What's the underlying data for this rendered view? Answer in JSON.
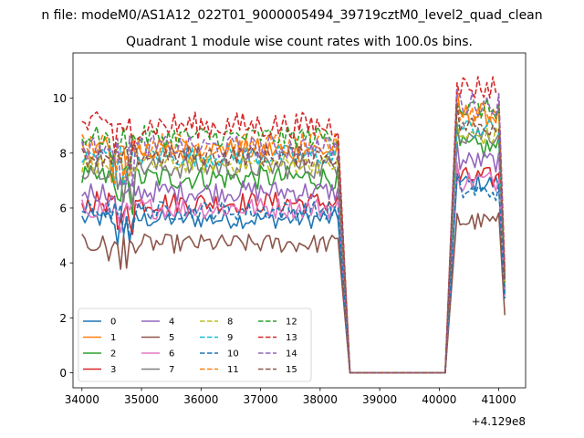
{
  "figure": {
    "suptitle": "n file: modeM0/AS1A12_022T01_9000005494_39719cztM0_level2_quad_clean"
  },
  "chart_data": {
    "type": "line",
    "title": "Quadrant 1 module wise count rates with 100.0s bins.",
    "xlabel": "",
    "ylabel": "",
    "x_offset_label": "+4.129e8",
    "xlim": [
      33850,
      41450
    ],
    "ylim": [
      -0.55,
      11.65
    ],
    "xticks": [
      34000,
      35000,
      36000,
      37000,
      38000,
      39000,
      40000,
      41000
    ],
    "yticks": [
      0,
      2,
      4,
      6,
      8,
      10
    ],
    "grid": false,
    "legend": {
      "placement": "lower-left",
      "columns": 4
    },
    "gap": {
      "start": 38500,
      "end": 40100,
      "value": 0
    },
    "active_segments": [
      [
        34000,
        38300
      ],
      [
        40300,
        41000
      ]
    ],
    "tail_point": 41100,
    "series": [
      {
        "name": "0",
        "color": "#1f77b4",
        "dash": "solid",
        "mean": 5.6,
        "amp": 0.35,
        "mean2": 6.9,
        "end": 2.9
      },
      {
        "name": "1",
        "color": "#ff7f0e",
        "dash": "solid",
        "mean": 8.1,
        "amp": 0.45,
        "mean2": 9.4,
        "end": 3.3
      },
      {
        "name": "2",
        "color": "#2ca02c",
        "dash": "solid",
        "mean": 7.1,
        "amp": 0.45,
        "mean2": 8.2,
        "end": 3.0
      },
      {
        "name": "3",
        "color": "#d62728",
        "dash": "solid",
        "mean": 6.2,
        "amp": 0.4,
        "mean2": 7.1,
        "end": 3.1
      },
      {
        "name": "4",
        "color": "#9467bd",
        "dash": "solid",
        "mean": 6.6,
        "amp": 0.4,
        "mean2": 7.7,
        "end": 3.2
      },
      {
        "name": "5",
        "color": "#8c564b",
        "dash": "solid",
        "mean": 4.7,
        "amp": 0.35,
        "mean2": 5.5,
        "end": 2.1
      },
      {
        "name": "6",
        "color": "#e377c2",
        "dash": "solid",
        "mean": 6.0,
        "amp": 0.4,
        "mean2": 7.0,
        "end": 2.8
      },
      {
        "name": "7",
        "color": "#7f7f7f",
        "dash": "solid",
        "mean": 7.5,
        "amp": 0.45,
        "mean2": 8.7,
        "end": 3.1
      },
      {
        "name": "8",
        "color": "#bcbd22",
        "dash": "dashed",
        "mean": 7.6,
        "amp": 0.35,
        "mean2": 8.6,
        "end": 3.2
      },
      {
        "name": "9",
        "color": "#17becf",
        "dash": "dashed",
        "mean": 7.9,
        "amp": 0.4,
        "mean2": 8.9,
        "end": 3.4
      },
      {
        "name": "10",
        "color": "#1f77b4",
        "dash": "dashed",
        "mean": 5.9,
        "amp": 0.35,
        "mean2": 6.6,
        "end": 2.7
      },
      {
        "name": "11",
        "color": "#ff7f0e",
        "dash": "dashed",
        "mean": 8.3,
        "amp": 0.45,
        "mean2": 9.5,
        "end": 3.6
      },
      {
        "name": "12",
        "color": "#2ca02c",
        "dash": "dashed",
        "mean": 8.6,
        "amp": 0.4,
        "mean2": 9.6,
        "end": 3.5
      },
      {
        "name": "13",
        "color": "#d62728",
        "dash": "dashed",
        "mean": 9.0,
        "amp": 0.5,
        "mean2": 10.4,
        "end": 3.8
      },
      {
        "name": "14",
        "color": "#9467bd",
        "dash": "dashed",
        "mean": 8.2,
        "amp": 0.45,
        "mean2": 9.8,
        "end": 3.4
      },
      {
        "name": "15",
        "color": "#8c564b",
        "dash": "dashed",
        "mean": 7.9,
        "amp": 0.4,
        "mean2": 9.0,
        "end": 3.3
      }
    ]
  }
}
